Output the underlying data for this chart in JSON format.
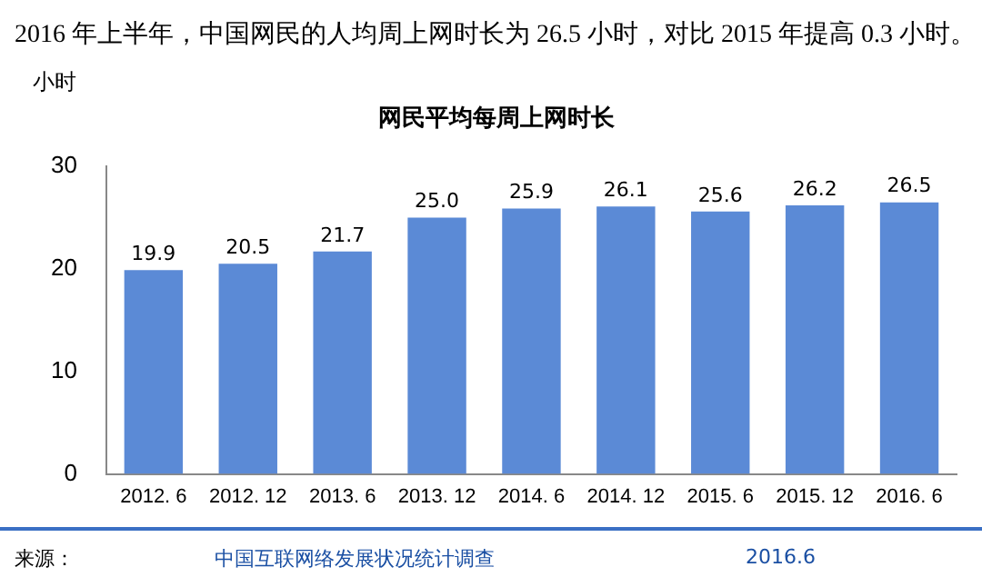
{
  "chart_data": {
    "type": "bar",
    "title": "网民平均每周上网时长",
    "ylabel": "小时",
    "categories": [
      "2012. 6",
      "2012. 12",
      "2013. 6",
      "2013. 12",
      "2014. 6",
      "2014. 12",
      "2015. 6",
      "2015. 12",
      "2016. 6"
    ],
    "values": [
      19.9,
      20.5,
      21.7,
      25.0,
      25.9,
      26.1,
      25.6,
      26.2,
      26.5
    ],
    "value_labels": [
      "19.9",
      "20.5",
      "21.7",
      "25.0",
      "25.9",
      "26.1",
      "25.6",
      "26.2",
      "26.5"
    ],
    "color": "#5b8ad6",
    "ylim": [
      0,
      30
    ],
    "yticks": [
      0,
      10,
      20,
      30
    ],
    "grid": false,
    "legend": false,
    "annotations": [
      "2016 年上半年，中国网民的人均周上网时长为 26.5 小时，对比 2015 年提高 0.3 小时。",
      "来源：",
      "中国互联网络发展状况统计调查",
      "2016.6"
    ]
  }
}
